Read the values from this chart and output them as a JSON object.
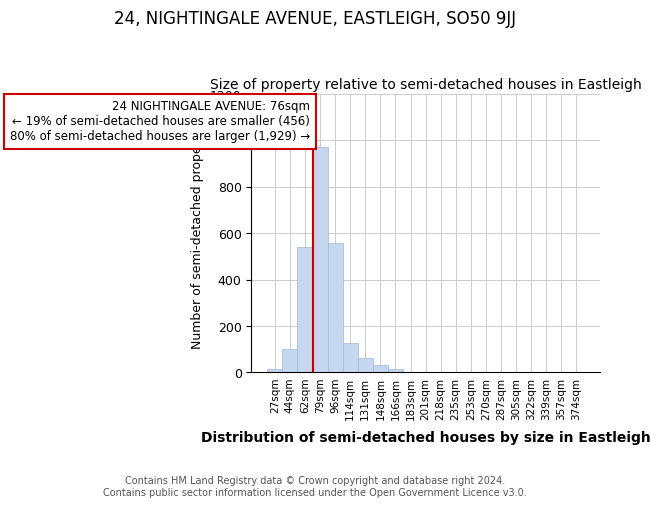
{
  "title": "24, NIGHTINGALE AVENUE, EASTLEIGH, SO50 9JJ",
  "subtitle": "Size of property relative to semi-detached houses in Eastleigh",
  "xlabel": "Distribution of semi-detached houses by size in Eastleigh",
  "ylabel": "Number of semi-detached properties",
  "categories": [
    "27sqm",
    "44sqm",
    "62sqm",
    "79sqm",
    "96sqm",
    "114sqm",
    "131sqm",
    "148sqm",
    "166sqm",
    "183sqm",
    "201sqm",
    "218sqm",
    "235sqm",
    "253sqm",
    "270sqm",
    "287sqm",
    "305sqm",
    "322sqm",
    "339sqm",
    "357sqm",
    "374sqm"
  ],
  "values": [
    15,
    100,
    540,
    970,
    560,
    125,
    60,
    30,
    15,
    0,
    0,
    0,
    0,
    0,
    0,
    0,
    0,
    0,
    0,
    0,
    0
  ],
  "bar_color": "#c5d8f0",
  "bar_edgecolor": "#a0b8d8",
  "highlight_index": 3,
  "annotation_box_text": "24 NIGHTINGALE AVENUE: 76sqm\n← 19% of semi-detached houses are smaller (456)\n80% of semi-detached houses are larger (1,929) →",
  "annotation_box_edgecolor": "#cc0000",
  "vline_color": "#cc0000",
  "ylim": [
    0,
    1200
  ],
  "yticks": [
    0,
    200,
    400,
    600,
    800,
    1000,
    1200
  ],
  "footer": "Contains HM Land Registry data © Crown copyright and database right 2024.\nContains public sector information licensed under the Open Government Licence v3.0.",
  "bg_color": "#ffffff",
  "grid_color": "#cccccc",
  "title_fontsize": 12,
  "subtitle_fontsize": 10,
  "xlabel_fontsize": 10,
  "ylabel_fontsize": 9,
  "ann_fontsize": 8.5
}
